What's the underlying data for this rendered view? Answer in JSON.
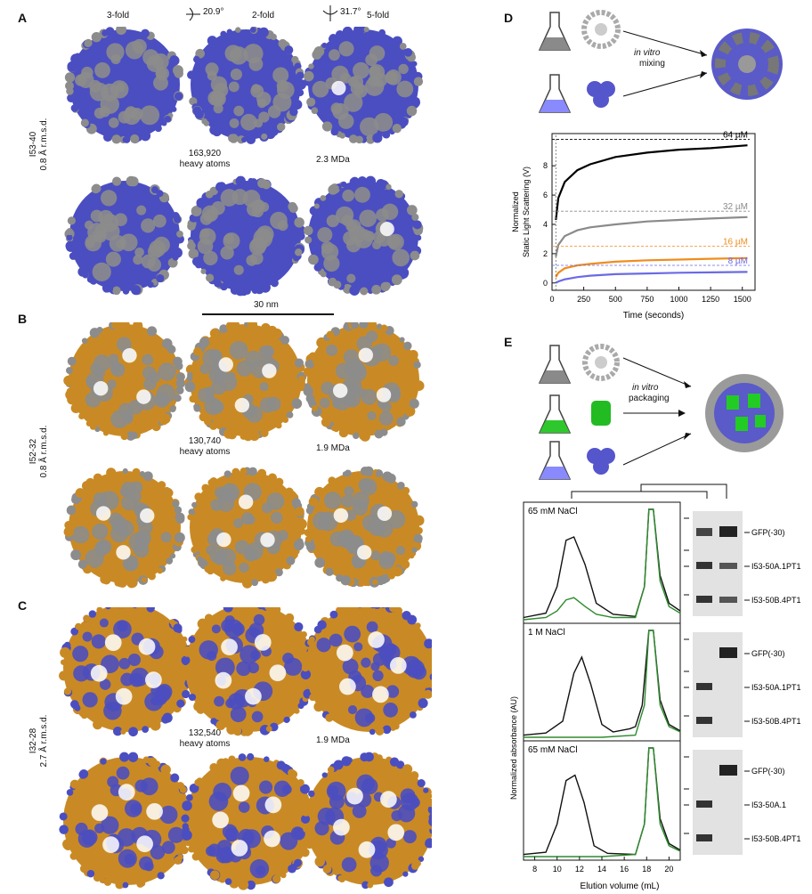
{
  "panel_a": {
    "label": "A",
    "views": [
      "3-fold",
      "2-fold",
      "5-fold"
    ],
    "rotations": [
      "20.9°",
      "31.7°"
    ],
    "name": "I53-40",
    "rmsd": "0.8 Å r.m.s.d.",
    "atoms": "163,920",
    "atoms_unit": "heavy atoms",
    "mass": "2.3 MDa",
    "scale": "30 nm",
    "colors": {
      "primary": "#4b4ec0",
      "secondary": "#8c8c8c"
    }
  },
  "panel_b": {
    "label": "B",
    "name": "I52-32",
    "rmsd": "0.8 Å r.m.s.d.",
    "atoms": "130,740",
    "atoms_unit": "heavy atoms",
    "mass": "1.9 MDa",
    "colors": {
      "primary": "#c98a25",
      "secondary": "#8c8c8c"
    }
  },
  "panel_c": {
    "label": "C",
    "name": "I32-28",
    "rmsd": "2.7 Å r.m.s.d.",
    "atoms": "132,540",
    "atoms_unit": "heavy atoms",
    "mass": "1.9 MDa",
    "colors": {
      "primary": "#c98a25",
      "secondary": "#4b4ec0"
    }
  },
  "panel_d": {
    "label": "D",
    "mixing_italic": "in vitro",
    "mixing": "mixing"
  },
  "panel_e": {
    "label": "E",
    "packaging_italic": "in vitro",
    "packaging": "packaging",
    "gel_rows": [
      {
        "salt": "65 mM NaCl",
        "bands": [
          "GFP(-30)",
          "I53-50A.1PT1",
          "I53-50B.4PT1"
        ]
      },
      {
        "salt": "1 M NaCl",
        "bands": [
          "GFP(-30)",
          "I53-50A.1PT1",
          "I53-50B.4PT1"
        ]
      },
      {
        "salt": "65 mM NaCl",
        "bands": [
          "GFP(-30)",
          "I53-50A.1",
          "I53-50B.4PT1"
        ]
      }
    ]
  },
  "chart_data": [
    {
      "type": "line",
      "xlabel": "Time (seconds)",
      "ylabel": "Normalized Static Light Scattering (V)",
      "xlim": [
        0,
        1600
      ],
      "ylim": [
        -0.5,
        10.2
      ],
      "xticks": [
        0,
        250,
        500,
        750,
        1000,
        1250,
        1500
      ],
      "yticks": [
        0,
        2,
        4,
        6,
        8
      ],
      "series": [
        {
          "name": "64 µM",
          "color": "#000000",
          "plateau": 9.8,
          "x": [
            30,
            50,
            100,
            200,
            300,
            500,
            750,
            1000,
            1250,
            1540
          ],
          "y": [
            4.3,
            5.8,
            6.9,
            7.7,
            8.1,
            8.6,
            8.9,
            9.1,
            9.2,
            9.4
          ]
        },
        {
          "name": "32 µM",
          "color": "#8a8a8a",
          "plateau": 4.9,
          "x": [
            30,
            50,
            100,
            200,
            300,
            500,
            750,
            1000,
            1250,
            1540
          ],
          "y": [
            1.8,
            2.6,
            3.2,
            3.6,
            3.8,
            4.0,
            4.2,
            4.3,
            4.4,
            4.5
          ]
        },
        {
          "name": "16 µM",
          "color": "#f08c1e",
          "plateau": 2.5,
          "x": [
            30,
            50,
            100,
            200,
            300,
            500,
            750,
            1000,
            1250,
            1540
          ],
          "y": [
            0.4,
            0.7,
            1.0,
            1.2,
            1.3,
            1.45,
            1.55,
            1.6,
            1.65,
            1.7
          ]
        },
        {
          "name": "8 µM",
          "color": "#6a6ae6",
          "plateau": 1.2,
          "x": [
            30,
            50,
            100,
            200,
            300,
            500,
            750,
            1000,
            1250,
            1540
          ],
          "y": [
            0.0,
            0.1,
            0.25,
            0.4,
            0.5,
            0.6,
            0.65,
            0.7,
            0.72,
            0.75
          ]
        }
      ]
    },
    {
      "type": "line",
      "xlabel": "Elution volume (mL)",
      "ylabel": "Normalized absorbance (AU)",
      "xlim": [
        7,
        21
      ],
      "xticks": [
        8,
        10,
        12,
        14,
        16,
        18,
        20
      ],
      "panels": [
        {
          "salt": "65 mM NaCl",
          "series": [
            {
              "color": "#111111",
              "x": [
                7,
                9,
                10,
                10.8,
                11.5,
                12.5,
                13.5,
                15,
                17,
                17.8,
                18.2,
                18.6,
                19.2,
                20,
                21
              ],
              "y": [
                0.02,
                0.06,
                0.3,
                0.72,
                0.75,
                0.5,
                0.15,
                0.05,
                0.03,
                0.3,
                1.0,
                1.0,
                0.4,
                0.15,
                0.08
              ]
            },
            {
              "color": "#2e8b2e",
              "x": [
                7,
                9,
                10,
                10.8,
                11.5,
                12.5,
                13.5,
                15,
                17,
                17.8,
                18.2,
                18.6,
                19.2,
                20,
                21
              ],
              "y": [
                0.0,
                0.02,
                0.08,
                0.18,
                0.2,
                0.12,
                0.05,
                0.02,
                0.02,
                0.3,
                1.0,
                1.0,
                0.35,
                0.12,
                0.06
              ]
            }
          ]
        },
        {
          "salt": "1 M NaCl",
          "series": [
            {
              "color": "#111111",
              "x": [
                7,
                9,
                10.5,
                11.5,
                12.2,
                13,
                14,
                15,
                16.5,
                17,
                17.6,
                18.2,
                18.6,
                19.2,
                20,
                21
              ],
              "y": [
                0.02,
                0.04,
                0.15,
                0.6,
                0.75,
                0.5,
                0.12,
                0.05,
                0.08,
                0.1,
                0.3,
                1.0,
                1.0,
                0.35,
                0.12,
                0.06
              ]
            },
            {
              "color": "#2e8b2e",
              "x": [
                7,
                10,
                14,
                17,
                17.8,
                18.2,
                18.6,
                19.2,
                20,
                21
              ],
              "y": [
                0.0,
                0.0,
                0.0,
                0.02,
                0.3,
                1.0,
                1.0,
                0.3,
                0.1,
                0.05
              ]
            }
          ]
        },
        {
          "salt": "65 mM NaCl",
          "series": [
            {
              "color": "#111111",
              "x": [
                7,
                9,
                10,
                10.8,
                11.6,
                12.4,
                13.3,
                14.5,
                17,
                17.8,
                18.2,
                18.6,
                19.2,
                20,
                21
              ],
              "y": [
                0.02,
                0.04,
                0.3,
                0.7,
                0.75,
                0.5,
                0.1,
                0.03,
                0.02,
                0.3,
                1.0,
                1.0,
                0.35,
                0.12,
                0.06
              ]
            },
            {
              "color": "#2e8b2e",
              "x": [
                7,
                10,
                14,
                17,
                17.8,
                18.2,
                18.6,
                19.2,
                20,
                21
              ],
              "y": [
                0.0,
                0.0,
                0.0,
                0.02,
                0.3,
                1.0,
                1.0,
                0.3,
                0.1,
                0.05
              ]
            }
          ]
        }
      ]
    }
  ]
}
